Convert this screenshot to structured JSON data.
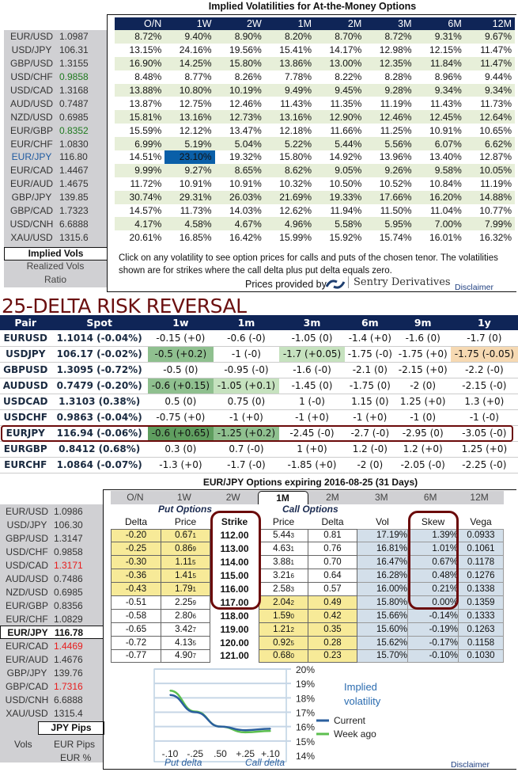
{
  "iv": {
    "title": "Implied Volatilities for At-the-Money Options",
    "tenors": [
      "O/N",
      "1W",
      "2W",
      "1M",
      "2M",
      "3M",
      "6M",
      "12M"
    ],
    "rows": [
      {
        "pair": "EUR/USD",
        "spot": "1.0987",
        "spot_color": "",
        "vals": [
          "8.72%",
          "9.40%",
          "8.90%",
          "8.20%",
          "8.70%",
          "8.72%",
          "9.31%",
          "9.67%"
        ]
      },
      {
        "pair": "USD/JPY",
        "spot": "106.31",
        "spot_color": "",
        "vals": [
          "13.15%",
          "24.16%",
          "19.56%",
          "15.41%",
          "14.17%",
          "12.98%",
          "12.15%",
          "11.47%"
        ]
      },
      {
        "pair": "GBP/USD",
        "spot": "1.3155",
        "spot_color": "",
        "vals": [
          "16.90%",
          "14.25%",
          "15.80%",
          "13.86%",
          "13.00%",
          "12.35%",
          "11.84%",
          "11.47%"
        ]
      },
      {
        "pair": "USD/CHF",
        "spot": "0.9858",
        "spot_color": "grn",
        "vals": [
          "8.48%",
          "8.77%",
          "8.26%",
          "7.78%",
          "8.22%",
          "8.28%",
          "8.96%",
          "9.44%"
        ]
      },
      {
        "pair": "USD/CAD",
        "spot": "1.3168",
        "spot_color": "",
        "vals": [
          "13.88%",
          "10.80%",
          "10.19%",
          "9.49%",
          "9.45%",
          "9.28%",
          "9.34%",
          "9.34%"
        ]
      },
      {
        "pair": "AUD/USD",
        "spot": "0.7487",
        "spot_color": "",
        "vals": [
          "13.87%",
          "12.75%",
          "12.46%",
          "11.43%",
          "11.35%",
          "11.19%",
          "11.43%",
          "11.73%"
        ]
      },
      {
        "pair": "NZD/USD",
        "spot": "0.6985",
        "spot_color": "",
        "vals": [
          "15.81%",
          "13.16%",
          "12.73%",
          "13.16%",
          "12.90%",
          "12.46%",
          "12.45%",
          "12.64%"
        ]
      },
      {
        "pair": "EUR/GBP",
        "spot": "0.8352",
        "spot_color": "grn",
        "vals": [
          "15.59%",
          "12.12%",
          "13.47%",
          "12.18%",
          "11.66%",
          "11.25%",
          "10.91%",
          "10.65%"
        ]
      },
      {
        "pair": "EUR/CHF",
        "spot": "1.0830",
        "spot_color": "",
        "vals": [
          "6.99%",
          "5.19%",
          "5.04%",
          "5.22%",
          "5.44%",
          "5.56%",
          "6.07%",
          "6.62%"
        ]
      },
      {
        "pair": "EUR/JPY",
        "spot": "116.80",
        "spot_color": "",
        "vals": [
          "14.51%",
          "23.10%",
          "19.32%",
          "15.80%",
          "14.92%",
          "13.96%",
          "13.40%",
          "12.87%"
        ],
        "pair_color": "blu",
        "selected": 1
      },
      {
        "pair": "EUR/CAD",
        "spot": "1.4467",
        "spot_color": "",
        "vals": [
          "9.99%",
          "9.27%",
          "8.65%",
          "8.62%",
          "9.05%",
          "9.26%",
          "9.58%",
          "10.05%"
        ]
      },
      {
        "pair": "EUR/AUD",
        "spot": "1.4675",
        "spot_color": "",
        "vals": [
          "11.72%",
          "10.91%",
          "10.91%",
          "10.32%",
          "10.50%",
          "10.52%",
          "10.84%",
          "11.19%"
        ]
      },
      {
        "pair": "GBP/JPY",
        "spot": "139.85",
        "spot_color": "",
        "vals": [
          "30.74%",
          "29.31%",
          "26.03%",
          "21.69%",
          "19.33%",
          "17.66%",
          "16.20%",
          "14.88%"
        ]
      },
      {
        "pair": "GBP/CAD",
        "spot": "1.7323",
        "spot_color": "",
        "vals": [
          "14.57%",
          "11.73%",
          "14.03%",
          "12.62%",
          "11.94%",
          "11.50%",
          "11.04%",
          "10.77%"
        ]
      },
      {
        "pair": "USD/CNH",
        "spot": "6.6888",
        "spot_color": "",
        "vals": [
          "4.17%",
          "4.58%",
          "4.67%",
          "4.96%",
          "5.58%",
          "5.95%",
          "7.00%",
          "7.99%"
        ]
      },
      {
        "pair": "XAU/USD",
        "spot": "1315.6",
        "spot_color": "",
        "vals": [
          "20.61%",
          "16.85%",
          "16.42%",
          "15.99%",
          "15.92%",
          "15.74%",
          "16.01%",
          "16.32%"
        ]
      }
    ],
    "tabs": [
      "Implied Vols",
      "Realized Vols",
      "Ratio"
    ],
    "note": "Click on any volatility to see option prices for calls and puts of the chosen tenor. The volatilities shown are for strikes where the call delta plus put delta equals zero.",
    "prices_by": "Prices provided by",
    "provider": "Sentry Derivatives",
    "disclaimer": "Disclaimer"
  },
  "rr": {
    "title": "25-DELTA RISK REVERSAL",
    "headers": [
      "Pair",
      "Spot",
      "1w",
      "1m",
      "3m",
      "6m",
      "9m",
      "1y"
    ],
    "highlight_colors": {
      "strong": "#5f9e5f",
      "mid": "#8fc08f",
      "light": "#c6e2bf",
      "orange": "#f6d9b2"
    },
    "rows": [
      {
        "cells": [
          "EURUSD",
          "1.1014 (-0.04%)",
          "-0.15 (+0)",
          "-0.6 (-0)",
          "-1.05 (0)",
          "-1.4 (+0)",
          "-1.6 (0)",
          "-1.7 (0)"
        ],
        "hl": {}
      },
      {
        "cells": [
          "USDJPY",
          "106.17 (-0.02%)",
          "-0.5 (+0.2)",
          "-1 (-0)",
          "-1.7 (+0.05)",
          "-1.75 (-0)",
          "-1.75 (+0)",
          "-1.75 (-0.05)"
        ],
        "hl": {
          "2": "mid",
          "4": "light",
          "7": "orange"
        }
      },
      {
        "cells": [
          "GBPUSD",
          "1.3095 (-0.72%)",
          "-0.5 (0)",
          "-0.95 (-0)",
          "-1.6 (-0)",
          "-2.1 (0)",
          "-2.15 (+0)",
          "-2.2 (-0)"
        ],
        "hl": {}
      },
      {
        "cells": [
          "AUDUSD",
          "0.7479 (-0.20%)",
          "-0.6 (+0.15)",
          "-1.05 (+0.1)",
          "-1.45 (0)",
          "-1.75 (0)",
          "-2 (0)",
          "-2.15 (-0)"
        ],
        "hl": {
          "2": "mid",
          "3": "light"
        }
      },
      {
        "cells": [
          "USDCAD",
          "1.3103 (0.38%)",
          "0.5 (0)",
          "0.75 (0)",
          "1 (-0)",
          "1.15 (0)",
          "1.25 (+0)",
          "1.3 (+0)"
        ],
        "hl": {}
      },
      {
        "cells": [
          "USDCHF",
          "0.9863 (-0.04%)",
          "-0.75 (+0)",
          "-1 (+0)",
          "-1 (+0)",
          "-1 (+0)",
          "-1 (0)",
          "-1 (-0)"
        ],
        "hl": {}
      },
      {
        "cells": [
          "EURJPY",
          "116.94 (-0.06%)",
          "-0.6 (+0.65)",
          "-1.25 (+0.2)",
          "-2.45 (-0)",
          "-2.7 (-0)",
          "-2.95 (0)",
          "-3.05 (-0)"
        ],
        "hl": {
          "2": "strong",
          "3": "mid"
        }
      },
      {
        "cells": [
          "EURGBP",
          "0.8412 (0.68%)",
          "0.3 (0)",
          "0.7 (-0)",
          "1 (+0)",
          "1.2 (-0)",
          "1.2 (+0)",
          "1.25 (+0)"
        ],
        "hl": {}
      },
      {
        "cells": [
          "EURCHF",
          "1.0864 (-0.07%)",
          "-1.3 (+0)",
          "-1.7 (-0)",
          "-1.85 (+0)",
          "-2 (0)",
          "-2.05 (-0)",
          "-2.25 (-0)"
        ],
        "hl": {}
      }
    ]
  },
  "opt": {
    "title": "EUR/JPY Options expiring 2016-08-25 (31 Days)",
    "tabs": [
      "O/N",
      "1W",
      "2W",
      "1M",
      "2M",
      "3M",
      "6M",
      "12M"
    ],
    "active_tab": "1M",
    "put_label": "Put Options",
    "call_label": "Call Options",
    "headers": [
      "Delta",
      "Price",
      "Strike",
      "Price",
      "Delta",
      "Vol",
      "Skew",
      "Vega"
    ],
    "rows": [
      [
        "-0.20",
        "0.671",
        "112.00",
        "5.443",
        "0.81",
        "17.19%",
        "1.39%",
        "0.0933"
      ],
      [
        "-0.25",
        "0.869",
        "113.00",
        "4.631",
        "0.76",
        "16.81%",
        "1.01%",
        "0.1061"
      ],
      [
        "-0.30",
        "1.115",
        "114.00",
        "3.881",
        "0.70",
        "16.47%",
        "0.67%",
        "0.1178"
      ],
      [
        "-0.36",
        "1.415",
        "115.00",
        "3.216",
        "0.64",
        "16.28%",
        "0.48%",
        "0.1276"
      ],
      [
        "-0.43",
        "1.791",
        "116.00",
        "2.583",
        "0.57",
        "16.00%",
        "0.21%",
        "0.1338"
      ],
      [
        "-0.51",
        "2.259",
        "117.00",
        "2.042",
        "0.49",
        "15.80%",
        "0.00%",
        "0.1359"
      ],
      [
        "-0.58",
        "2.806",
        "118.00",
        "1.590",
        "0.42",
        "15.66%",
        "-0.14%",
        "0.1333"
      ],
      [
        "-0.65",
        "3.427",
        "119.00",
        "1.212",
        "0.35",
        "15.60%",
        "-0.19%",
        "0.1263"
      ],
      [
        "-0.72",
        "4.135",
        "120.00",
        "0.925",
        "0.28",
        "15.62%",
        "-0.17%",
        "0.1158"
      ],
      [
        "-0.77",
        "4.907",
        "121.00",
        "0.680",
        "0.23",
        "15.70%",
        "-0.10%",
        "0.1030"
      ]
    ],
    "spots": [
      {
        "pair": "EUR/USD",
        "spot": "1.0986",
        "c": ""
      },
      {
        "pair": "USD/JPY",
        "spot": "106.30",
        "c": ""
      },
      {
        "pair": "GBP/USD",
        "spot": "1.3147",
        "c": ""
      },
      {
        "pair": "USD/CHF",
        "spot": "0.9858",
        "c": ""
      },
      {
        "pair": "USD/CAD",
        "spot": "1.3171",
        "c": "red"
      },
      {
        "pair": "AUD/USD",
        "spot": "0.7486",
        "c": ""
      },
      {
        "pair": "NZD/USD",
        "spot": "0.6985",
        "c": ""
      },
      {
        "pair": "EUR/GBP",
        "spot": "0.8356",
        "c": ""
      },
      {
        "pair": "EUR/CHF",
        "spot": "1.0829",
        "c": ""
      },
      {
        "pair": "EUR/JPY",
        "spot": "116.78",
        "c": "",
        "active": true
      },
      {
        "pair": "EUR/CAD",
        "spot": "1.4469",
        "c": "red"
      },
      {
        "pair": "EUR/AUD",
        "spot": "1.4676",
        "c": ""
      },
      {
        "pair": "GBP/JPY",
        "spot": "139.76",
        "c": ""
      },
      {
        "pair": "GBP/CAD",
        "spot": "1.7316",
        "c": "red"
      },
      {
        "pair": "USD/CNH",
        "spot": "6.6888",
        "c": ""
      },
      {
        "pair": "XAU/USD",
        "spot": "1315.4",
        "c": ""
      }
    ],
    "unit_tabs": [
      "JPY Pips",
      "EUR Pips",
      "EUR %"
    ],
    "vols_label": "Vols",
    "disclaimer": "Disclaimer"
  },
  "chart_data": {
    "type": "line",
    "title": "Implied volatility",
    "categories": [
      "-.10",
      "-.25",
      ".50",
      "+.25",
      "+.10"
    ],
    "series": [
      {
        "name": "Current",
        "color": "#2b5f9e",
        "values": [
          18.2,
          17.0,
          16.0,
          15.75,
          15.85
        ]
      },
      {
        "name": "Week ago",
        "color": "#5cbf4f",
        "values": [
          18.5,
          17.05,
          16.0,
          15.6,
          15.7
        ]
      }
    ],
    "yticks": [
      "20%",
      "19%",
      "18%",
      "17%",
      "16%",
      "15%",
      "14%"
    ],
    "ylim": [
      14,
      20
    ],
    "xlabel_left": "Put delta",
    "xlabel_right": "Call delta",
    "grid": true,
    "legend": "right"
  }
}
